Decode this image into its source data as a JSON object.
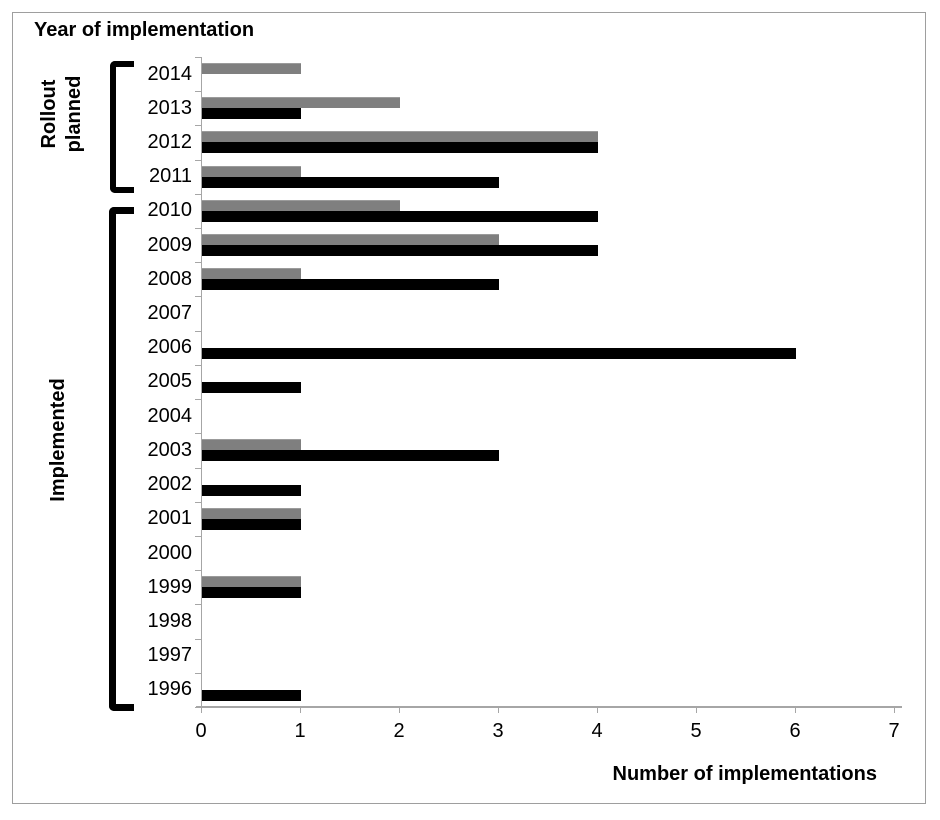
{
  "title": "Year of implementation",
  "xlabel": "Number of implementations",
  "chart_data": {
    "type": "bar",
    "orientation": "horizontal",
    "title": "Year of implementation",
    "xlabel": "Number of implementations",
    "ylabel": "",
    "xlim": [
      0,
      7
    ],
    "xticks": [
      0,
      1,
      2,
      3,
      4,
      5,
      6,
      7
    ],
    "grid": false,
    "legend_visible": false,
    "categories": [
      "2014",
      "2013",
      "2012",
      "2011",
      "2010",
      "2009",
      "2008",
      "2007",
      "2006",
      "2005",
      "2004",
      "2003",
      "2002",
      "2001",
      "2000",
      "1999",
      "1998",
      "1997",
      "1996"
    ],
    "series": [
      {
        "name": "gray-top-bar",
        "color": "#7f7f7f",
        "values": [
          1,
          2,
          4,
          1,
          2,
          3,
          1,
          0,
          0,
          0,
          0,
          1,
          0,
          1,
          0,
          1,
          0,
          0,
          0
        ]
      },
      {
        "name": "black-bottom-bar",
        "color": "#000000",
        "values": [
          0,
          1,
          4,
          3,
          4,
          4,
          3,
          0,
          6,
          1,
          0,
          3,
          1,
          1,
          0,
          1,
          0,
          0,
          1
        ]
      }
    ],
    "groups": [
      {
        "label": "Rollout planned",
        "lines": [
          "Rollout",
          "planned"
        ],
        "from_category": "2014",
        "to_category": "2011"
      },
      {
        "label": "Implemented",
        "lines": [
          "Implemented"
        ],
        "from_category": "2010",
        "to_category": "1996"
      }
    ]
  },
  "colors": {
    "axis": "#a6a6a6",
    "bracket": "#000000",
    "frame_border": "#9e9e9e",
    "bar_gray": "#7f7f7f",
    "bar_black": "#000000"
  }
}
